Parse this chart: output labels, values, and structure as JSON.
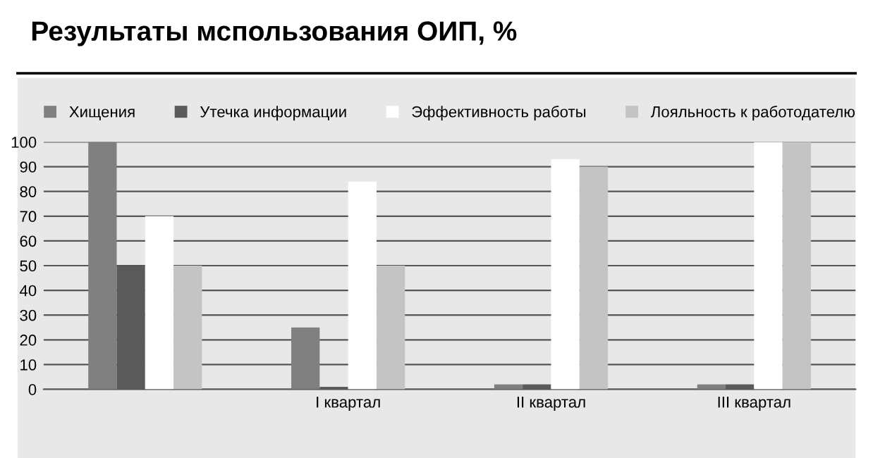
{
  "chart_data": {
    "type": "bar",
    "title": "Результаты мспользования ОИП, %",
    "categories": [
      null,
      "I квартал",
      "II квартал",
      "III квартал"
    ],
    "series": [
      {
        "name": "Хищения",
        "color": "#808080",
        "values": [
          100,
          25,
          2,
          2
        ]
      },
      {
        "name": "Утечка информации",
        "color": "#5a5a5a",
        "values": [
          50,
          1,
          2,
          2
        ]
      },
      {
        "name": "Эффективность работы",
        "color": "#ffffff",
        "values": [
          70,
          84,
          93,
          100
        ]
      },
      {
        "name": "Лояльность к работодателю",
        "color": "#c4c4c4",
        "values": [
          50,
          50,
          90,
          100
        ]
      }
    ],
    "ylim": [
      0,
      100
    ],
    "yticks": [
      0,
      10,
      20,
      30,
      40,
      50,
      60,
      70,
      80,
      90,
      100
    ],
    "grid": "y",
    "legend": "top"
  }
}
